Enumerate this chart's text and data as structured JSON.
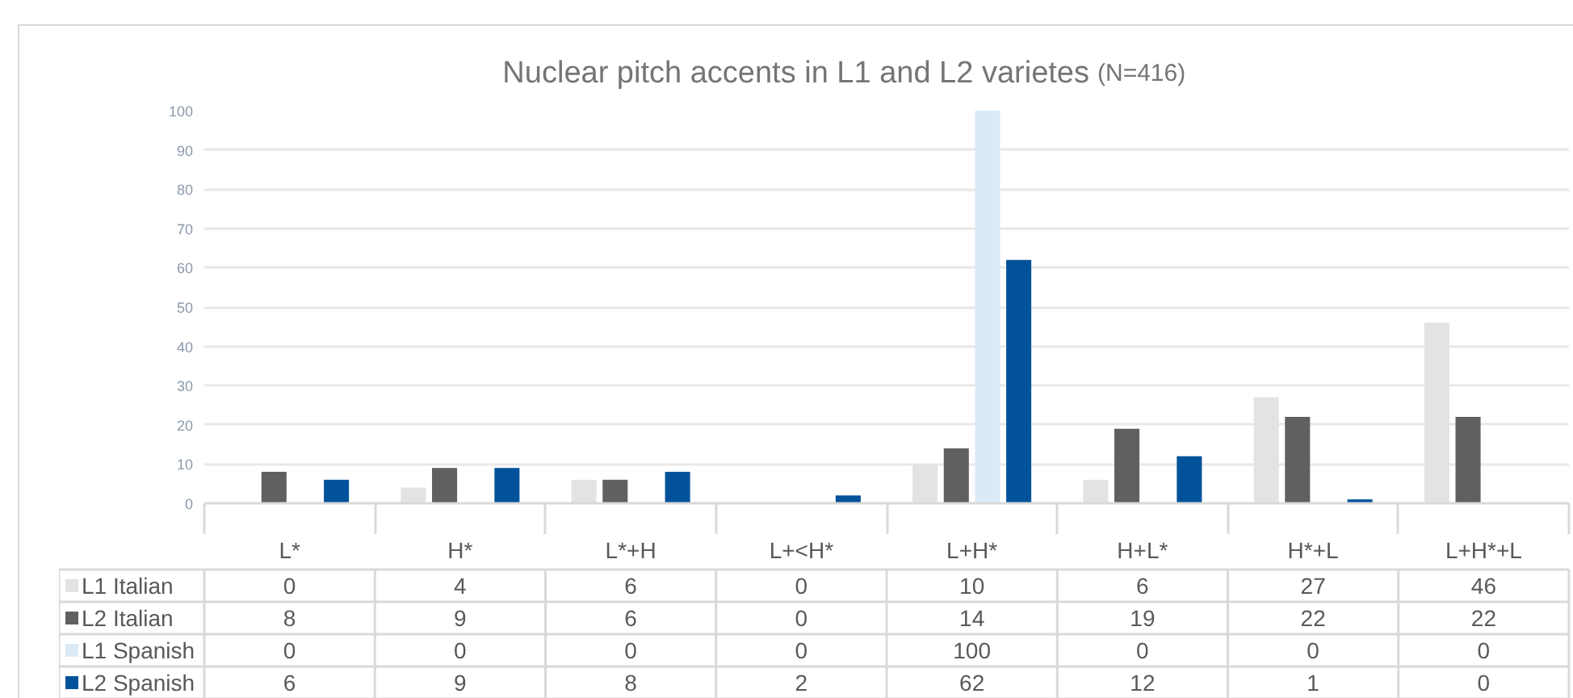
{
  "chart_data": {
    "type": "bar",
    "title": "Nuclear pitch accents in L1 and L2 varietes",
    "subtitle": "(N=416)",
    "categories": [
      "L*",
      "H*",
      "L*+H",
      "L+<H*",
      "L+H*",
      "H+L*",
      "H*+L",
      "L+H*+L"
    ],
    "series": [
      {
        "name": "L1 Italian",
        "color": "#e3e3e3",
        "values": [
          0,
          4,
          6,
          0,
          10,
          6,
          27,
          46
        ]
      },
      {
        "name": "L2 Italian",
        "color": "#606060",
        "values": [
          8,
          9,
          6,
          0,
          14,
          19,
          22,
          22
        ]
      },
      {
        "name": "L1 Spanish",
        "color": "#dbeaf7",
        "values": [
          0,
          0,
          0,
          0,
          100,
          0,
          0,
          0
        ]
      },
      {
        "name": "L2 Spanish",
        "color": "#01529b",
        "values": [
          6,
          9,
          8,
          2,
          62,
          12,
          1,
          0
        ]
      }
    ],
    "ylim": [
      0,
      100
    ],
    "yticks": [
      0,
      10,
      20,
      30,
      40,
      50,
      60,
      70,
      80,
      90,
      100
    ],
    "grid": "y",
    "legend": "bottom",
    "data_labels": true
  }
}
